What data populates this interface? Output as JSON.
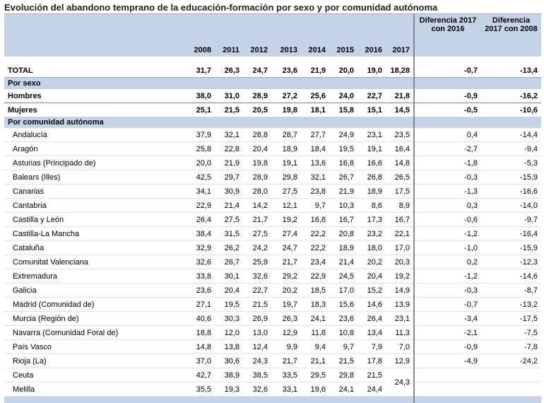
{
  "title": "Evolución del abandono temprano de la educación-formación por sexo y por comunidad autónoma",
  "header": {
    "years": [
      "2008",
      "2011",
      "2012",
      "2013",
      "2014",
      "2015",
      "2016",
      "2017"
    ],
    "diff1": "Diferencia 2017 con 2016",
    "diff2": "Diferencia 2017 con 2008"
  },
  "total": {
    "label": "TOTAL",
    "values": [
      "31,7",
      "26,3",
      "24,7",
      "23,6",
      "21,9",
      "20,0",
      "19,0",
      "18,28"
    ],
    "d1": "-0,7",
    "d2": "-13,4"
  },
  "section_sexo": "Por sexo",
  "hombres": {
    "label": "Hombres",
    "values": [
      "38,0",
      "31,0",
      "28,9",
      "27,2",
      "25,6",
      "24,0",
      "22,7",
      "21,8"
    ],
    "d1": "-0,9",
    "d2": "-16,2"
  },
  "mujeres": {
    "label": "Mujeres",
    "values": [
      "25,1",
      "21,5",
      "20,5",
      "19,8",
      "18,1",
      "15,8",
      "15,1",
      "14,5"
    ],
    "d1": "-0,5",
    "d2": "-10,6"
  },
  "section_ccaa": "Por comunidad autónoma",
  "regions": [
    {
      "label": "Andalucía",
      "values": [
        "37,9",
        "32,1",
        "28,8",
        "28,7",
        "27,7",
        "24,9",
        "23,1",
        "23,5"
      ],
      "d1": "0,4",
      "d2": "-14,4"
    },
    {
      "label": "Aragón",
      "values": [
        "25,8",
        "22,8",
        "20,4",
        "18,9",
        "18,4",
        "19,5",
        "19,1",
        "16,4"
      ],
      "d1": "-2,7",
      "d2": "-9,4"
    },
    {
      "label": "Asturias (Principado de)",
      "values": [
        "20,0",
        "21,9",
        "19,8",
        "19,1",
        "13,6",
        "16,8",
        "16,6",
        "14,8"
      ],
      "d1": "-1,8",
      "d2": "-5,3"
    },
    {
      "label": "Balears (Illes)",
      "values": [
        "42,5",
        "29,7",
        "28,9",
        "29,8",
        "32,1",
        "26,7",
        "26,8",
        "26,5"
      ],
      "d1": "-0,3",
      "d2": "-15,9"
    },
    {
      "label": "Canarias",
      "values": [
        "34,1",
        "30,9",
        "28,0",
        "27,5",
        "23,8",
        "21,9",
        "18,9",
        "17,5"
      ],
      "d1": "-1,3",
      "d2": "-16,6"
    },
    {
      "label": "Cantabria",
      "values": [
        "22,9",
        "21,4",
        "14,2",
        "12,1",
        "9,7",
        "10,3",
        "8,6",
        "8,9"
      ],
      "d1": "0,3",
      "d2": "-14,0"
    },
    {
      "label": "Castilla y León",
      "values": [
        "26,4",
        "27,5",
        "21,7",
        "19,2",
        "16,8",
        "16,7",
        "17,3",
        "16,7"
      ],
      "d1": "-0,6",
      "d2": "-9,7"
    },
    {
      "label": "Castilla-La Mancha",
      "values": [
        "38,4",
        "31,5",
        "27,5",
        "27,4",
        "22,2",
        "20,8",
        "23,2",
        "22,1"
      ],
      "d1": "-1,2",
      "d2": "-16,4"
    },
    {
      "label": "Cataluña",
      "values": [
        "32,9",
        "26,2",
        "24,2",
        "24,7",
        "22,2",
        "18,9",
        "18,0",
        "17,0"
      ],
      "d1": "-1,0",
      "d2": "-15,9"
    },
    {
      "label": "Comunitat Valenciana",
      "values": [
        "32,6",
        "26,7",
        "25,9",
        "21,7",
        "23,4",
        "21,4",
        "20,2",
        "20,3"
      ],
      "d1": "0,2",
      "d2": "-12,3"
    },
    {
      "label": "Extremadura",
      "values": [
        "33,8",
        "30,1",
        "32,6",
        "29,2",
        "22,9",
        "24,5",
        "20,4",
        "19,2"
      ],
      "d1": "-1,2",
      "d2": "-14,6"
    },
    {
      "label": "Galicia",
      "values": [
        "23,6",
        "20,4",
        "22,7",
        "20,2",
        "18,5",
        "17,0",
        "15,2",
        "14,9"
      ],
      "d1": "-0,3",
      "d2": "-8,7"
    },
    {
      "label": "Madrid (Comunidad de)",
      "values": [
        "27,1",
        "19,5",
        "21,5",
        "19,7",
        "18,3",
        "15,6",
        "14,6",
        "13,9"
      ],
      "d1": "-0,7",
      "d2": "-13,2"
    },
    {
      "label": "Murcia (Región de)",
      "values": [
        "40,6",
        "30,3",
        "26,9",
        "26,3",
        "24,1",
        "23,6",
        "26,4",
        "23,1"
      ],
      "d1": "-3,4",
      "d2": "-17,5"
    },
    {
      "label": "Navarra (Comunidad Foral de)",
      "values": [
        "18,8",
        "12,0",
        "13,0",
        "12,9",
        "11,8",
        "10,8",
        "13,4",
        "11,3"
      ],
      "d1": "-2,1",
      "d2": "-7,5"
    },
    {
      "label": "País Vasco",
      "values": [
        "14,8",
        "13,8",
        "12,4",
        "9,9",
        "9,4",
        "9,7",
        "7,9",
        "7,0"
      ],
      "d1": "-0,9",
      "d2": "-7,8"
    },
    {
      "label": "Rioja (La)",
      "values": [
        "37,0",
        "30,6",
        "24,3",
        "21,7",
        "21,1",
        "21,5",
        "17,8",
        "12,9"
      ],
      "d1": "-4,9",
      "d2": "-24,2"
    }
  ],
  "ceuta": {
    "label": "Ceuta",
    "values": [
      "42,7",
      "38,9",
      "38,5",
      "33,5",
      "29,5",
      "29,8",
      "21,5"
    ]
  },
  "melilla": {
    "label": "Melilla",
    "values": [
      "35,5",
      "19,3",
      "32,6",
      "33,1",
      "19,6",
      "24,1",
      "24,4"
    ]
  },
  "ceuta_melilla_2017": "24,3"
}
